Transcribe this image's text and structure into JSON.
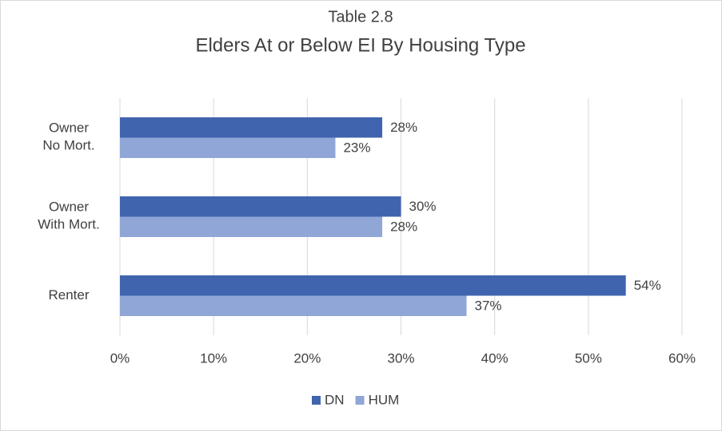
{
  "chart_data": {
    "type": "barh",
    "title": "Table 2.8",
    "subtitle": "Elders At or Below EI By Housing Type",
    "categories": [
      "Owner\nNo Mort.",
      "Owner\nWith Mort.",
      "Renter"
    ],
    "series": [
      {
        "name": "DN",
        "color": "#4064ae",
        "values": [
          28,
          30,
          54
        ],
        "value_labels": [
          "28%",
          "30%",
          "54%"
        ]
      },
      {
        "name": "HUM",
        "color": "#8fa6d7",
        "values": [
          23,
          28,
          37
        ],
        "value_labels": [
          "23%",
          "28%",
          "37%"
        ]
      }
    ],
    "xlim": [
      0,
      60
    ],
    "xticks": [
      {
        "value": 0,
        "label": "0%"
      },
      {
        "value": 10,
        "label": "10%"
      },
      {
        "value": 20,
        "label": "20%"
      },
      {
        "value": 30,
        "label": "30%"
      },
      {
        "value": 40,
        "label": "40%"
      },
      {
        "value": 50,
        "label": "50%"
      },
      {
        "value": 60,
        "label": "60%"
      }
    ],
    "grid": true,
    "legend": "bottom"
  }
}
